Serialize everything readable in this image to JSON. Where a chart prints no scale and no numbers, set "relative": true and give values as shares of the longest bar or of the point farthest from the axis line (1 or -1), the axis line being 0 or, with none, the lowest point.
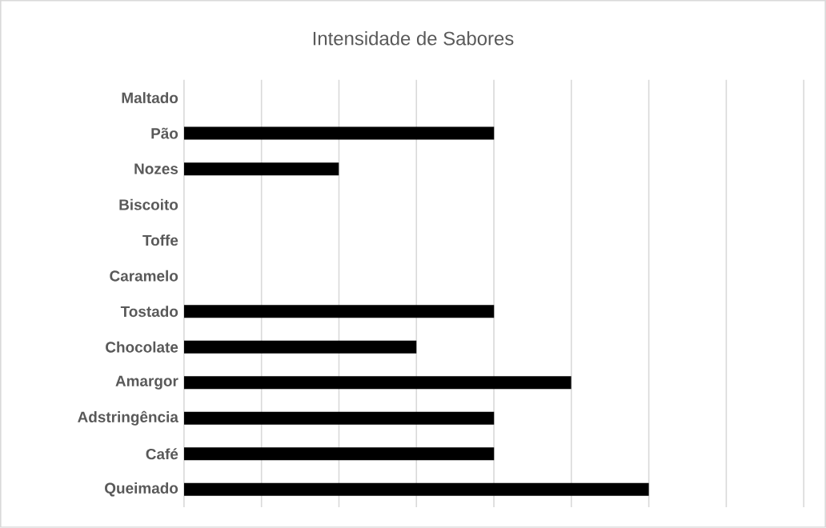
{
  "chart_data": {
    "type": "bar",
    "orientation": "horizontal",
    "relative": true,
    "title": "Intensidade de Sabores",
    "categories": [
      "Maltado",
      "Pão",
      "Nozes",
      "Biscoito",
      "Toffe",
      "Caramelo",
      "Tostado",
      "Chocolate",
      "Amargor",
      "Adstringência",
      "Café",
      "Queimado"
    ],
    "values": [
      0,
      0.667,
      0.333,
      0,
      0,
      0,
      0.667,
      0.5,
      0.833,
      0.667,
      0.667,
      1
    ],
    "color": "#000000",
    "grid": "x"
  }
}
